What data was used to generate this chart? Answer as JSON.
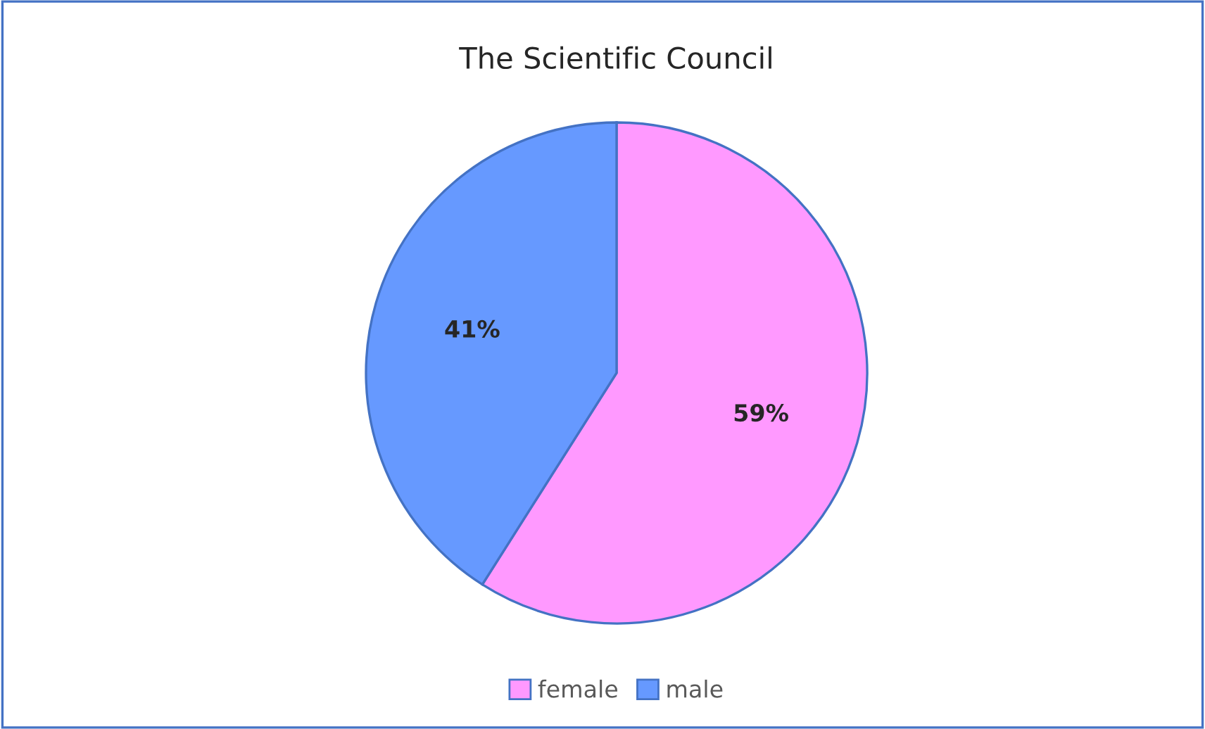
{
  "chart_data": {
    "type": "pie",
    "title": "The Scientific Council",
    "categories": [
      "female",
      "male"
    ],
    "values": [
      59,
      41
    ],
    "colors": [
      "#ff99ff",
      "#6699ff"
    ],
    "value_labels": [
      "59%",
      "41%"
    ],
    "legend": "bottom"
  }
}
